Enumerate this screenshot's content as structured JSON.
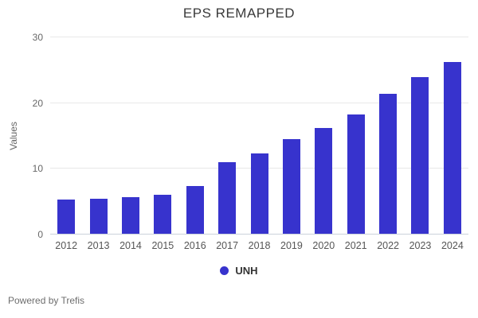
{
  "title": "EPS REMAPPED",
  "legend": {
    "series_label": "UNH"
  },
  "footer": {
    "text": "Powered by Trefis"
  },
  "colors": {
    "bar": "#3733cd",
    "grid": "#e8e8e8",
    "axis_line": "#cbd1db",
    "title_text": "#3a3a3a",
    "tick_text": "#666666",
    "footer_text": "#6e6e6e"
  },
  "chart_data": {
    "type": "bar",
    "title": "EPS REMAPPED",
    "categories": [
      "2012",
      "2013",
      "2014",
      "2015",
      "2016",
      "2017",
      "2018",
      "2019",
      "2020",
      "2021",
      "2022",
      "2023",
      "2024"
    ],
    "series": [
      {
        "name": "UNH",
        "values": [
          5.3,
          5.5,
          5.7,
          6.1,
          7.4,
          11.0,
          12.3,
          14.5,
          16.2,
          18.3,
          21.4,
          23.9,
          26.3
        ]
      }
    ],
    "xlabel": "",
    "ylabel": "Values",
    "ylim": [
      0,
      30
    ],
    "yticks": [
      0,
      10,
      20,
      30
    ],
    "grid": true,
    "legend_position": "bottom"
  }
}
